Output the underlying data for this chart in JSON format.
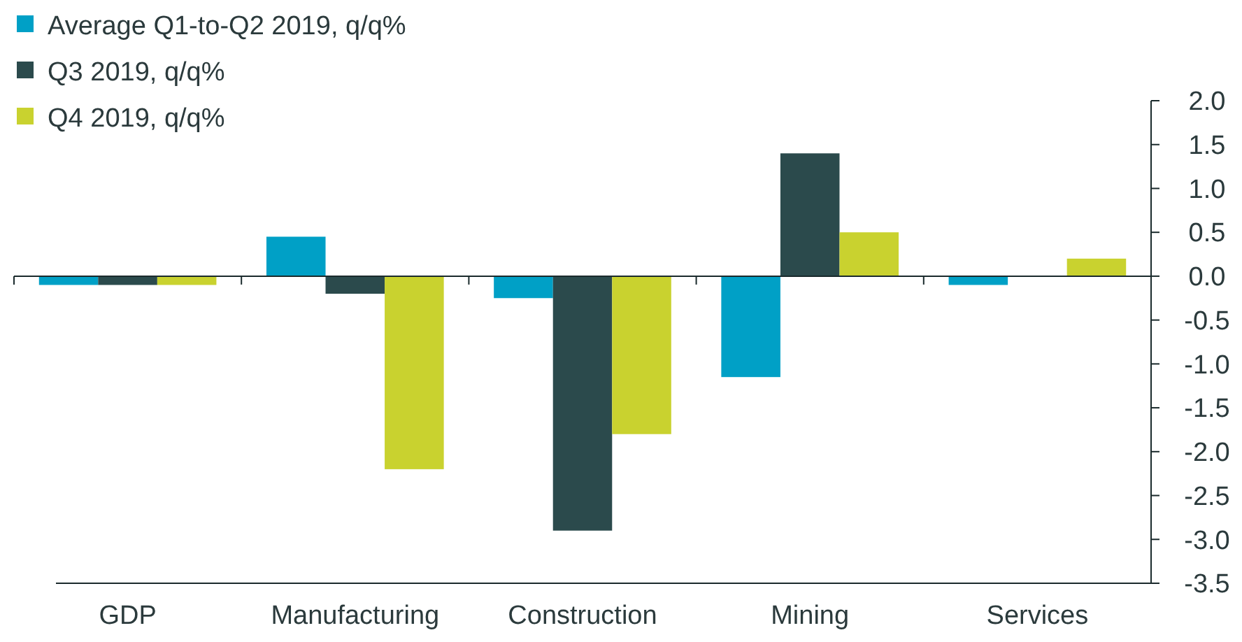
{
  "chart_data": {
    "type": "bar",
    "categories": [
      "GDP",
      "Manufacturing",
      "Construction",
      "Mining",
      "Services"
    ],
    "series": [
      {
        "name": "Average Q1-to-Q2 2019, q/q%",
        "color": "#00a0c6",
        "values": [
          -0.1,
          0.45,
          -0.25,
          -1.15,
          -0.1
        ]
      },
      {
        "name": "Q3 2019, q/q%",
        "color": "#2b4a4c",
        "values": [
          -0.1,
          -0.2,
          -2.9,
          1.4,
          0
        ]
      },
      {
        "name": "Q4 2019, q/q%",
        "color": "#c9d22f",
        "values": [
          -0.1,
          -2.2,
          -1.8,
          0.5,
          0.2
        ]
      }
    ],
    "ylim": [
      -3.5,
      2.0
    ],
    "yticks": [
      {
        "value": 2,
        "label": "2.0"
      },
      {
        "value": 1.5,
        "label": "1.5"
      },
      {
        "value": 1,
        "label": "1.0"
      },
      {
        "value": 0.5,
        "label": "0.5"
      },
      {
        "value": 0,
        "label": "0.0"
      },
      {
        "value": -0.5,
        "label": "-0.5"
      },
      {
        "value": -1,
        "label": "-1.0"
      },
      {
        "value": -1.5,
        "label": "-1.5"
      },
      {
        "value": -2,
        "label": "-2.0"
      },
      {
        "value": -2.5,
        "label": "-2.5"
      },
      {
        "value": -3,
        "label": "-3.0"
      },
      {
        "value": -3.5,
        "label": "-3.5"
      }
    ],
    "legend": "top left"
  }
}
